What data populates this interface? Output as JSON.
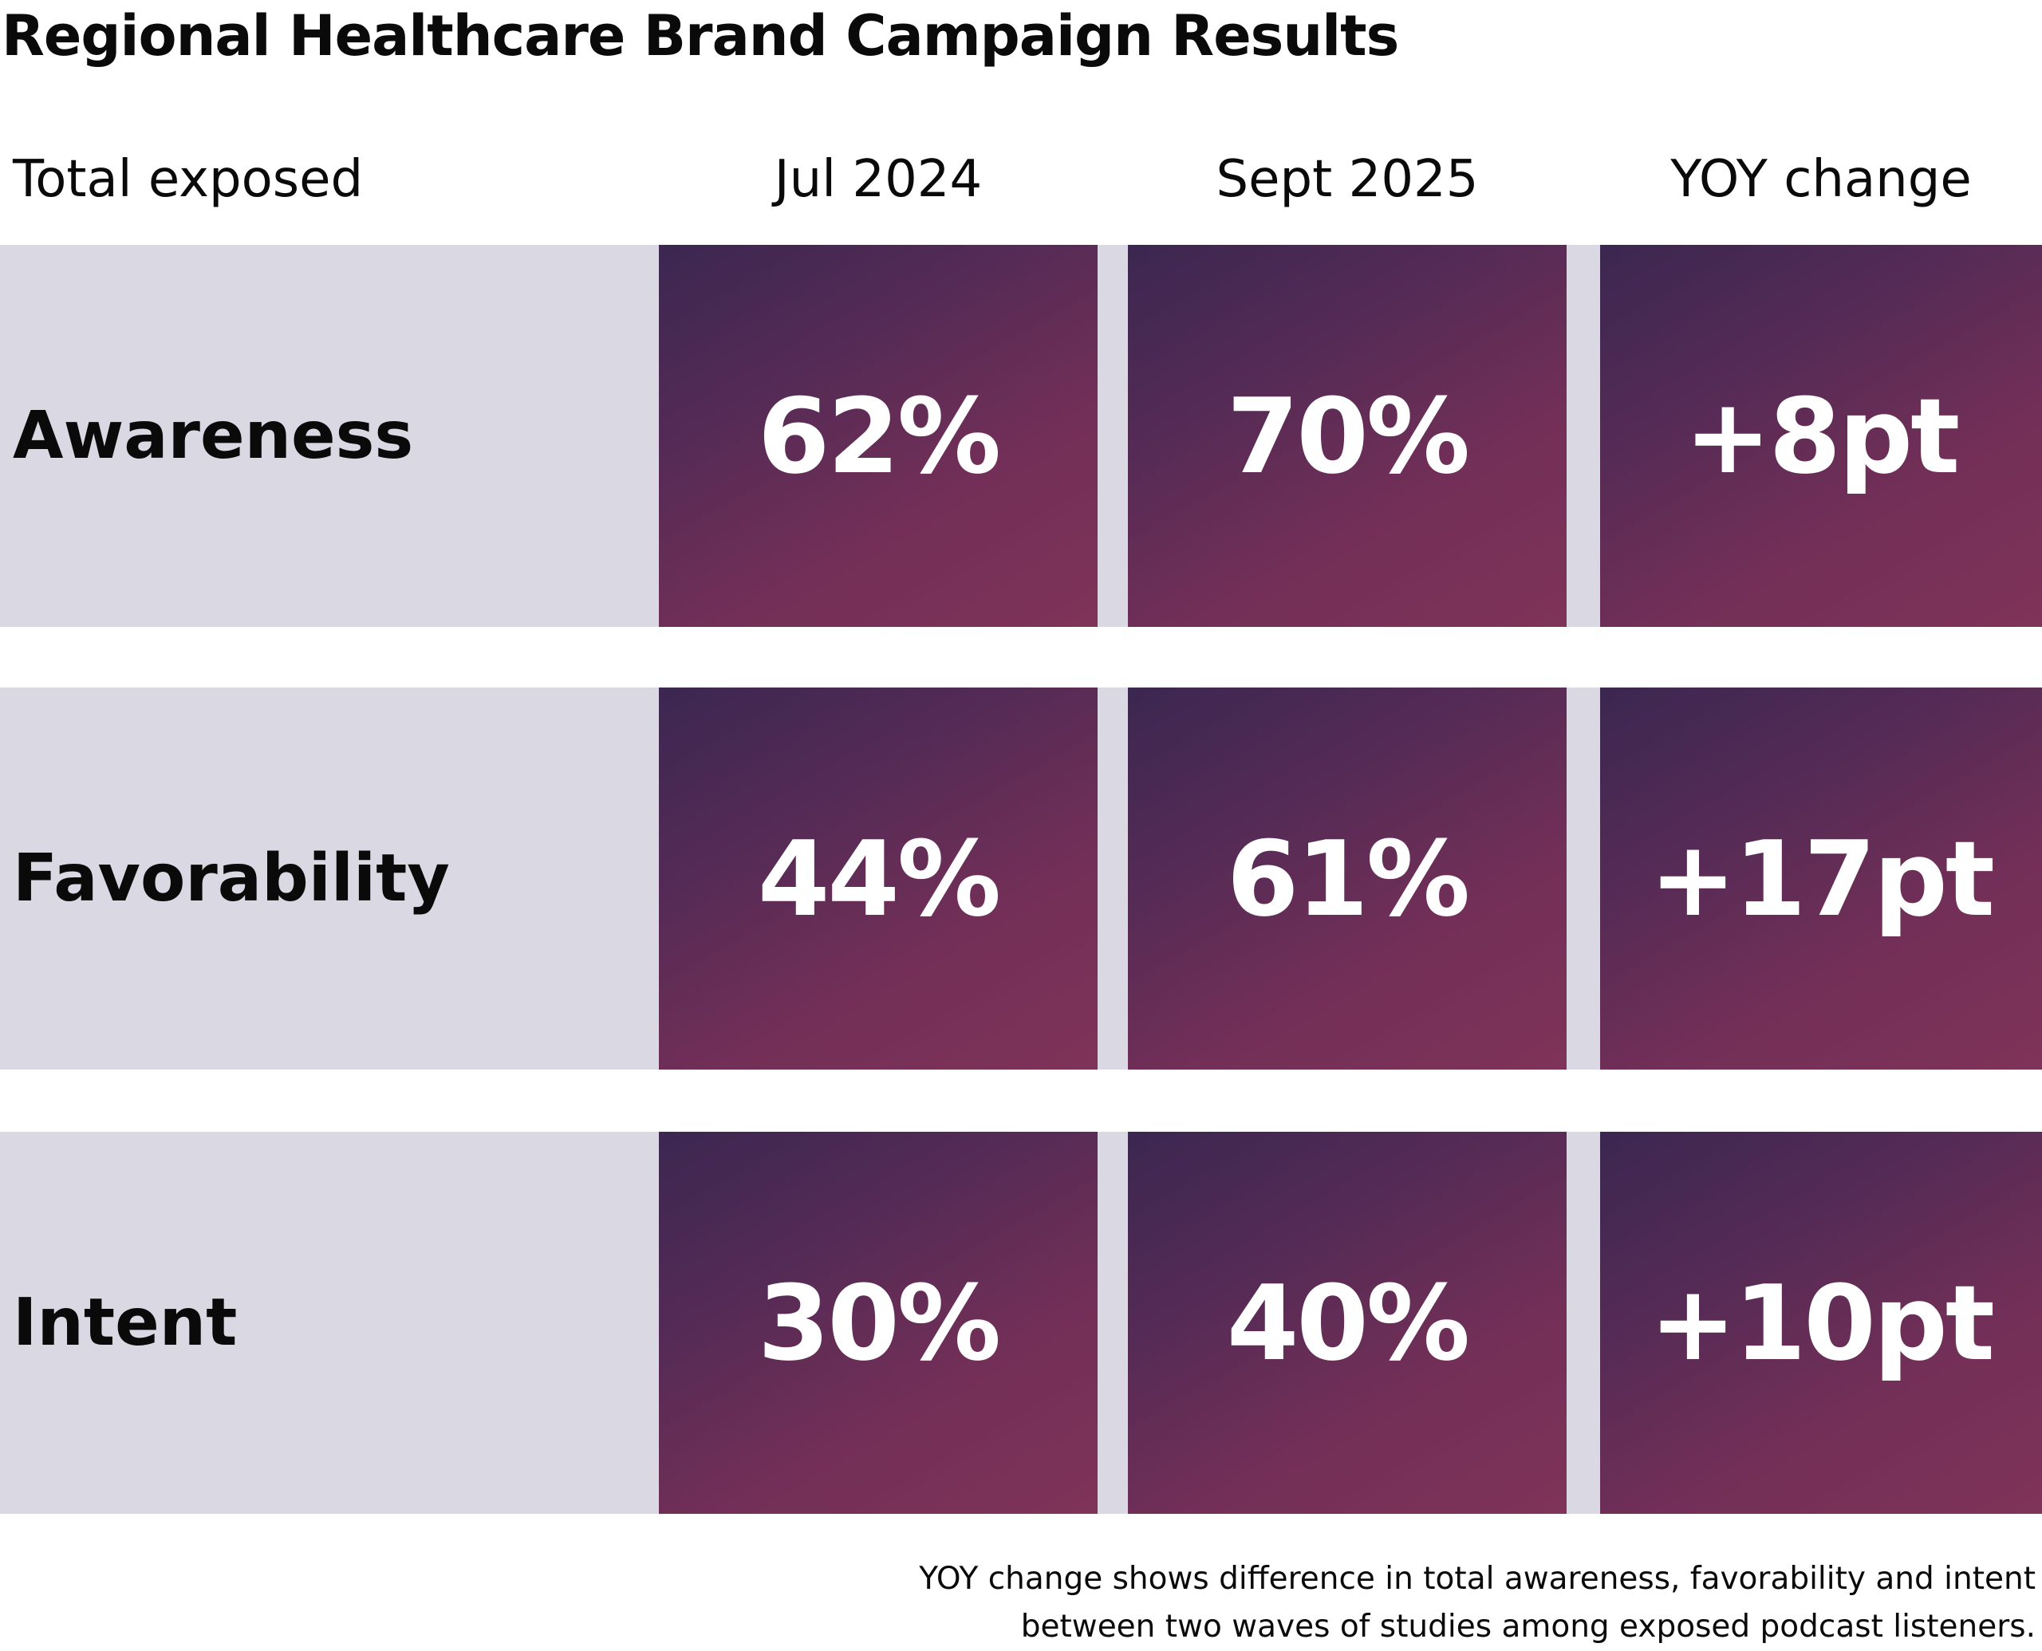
{
  "title": "Regional Healthcare Brand Campaign Results",
  "headers": {
    "label": "Total exposed",
    "col1": "Jul 2024",
    "col2": "Sept 2025",
    "col3": "YOY change"
  },
  "rows": [
    {
      "label": "Awareness",
      "jul_2024": "62%",
      "sept_2025": "70%",
      "yoy": "+8pt"
    },
    {
      "label": "Favorability",
      "jul_2024": "44%",
      "sept_2025": "61%",
      "yoy": "+17pt"
    },
    {
      "label": "Intent",
      "jul_2024": "30%",
      "sept_2025": "40%",
      "yoy": "+10pt"
    }
  ],
  "footer": {
    "line1": "YOY change shows difference in total awareness, favorability and intent",
    "line2": "between two waves of studies among exposed podcast listeners."
  },
  "colors": {
    "row_background": "#dad8e3",
    "cell_gradient_start": "#3b2750",
    "cell_gradient_end": "#7f3358",
    "cell_text": "#ffffff"
  }
}
